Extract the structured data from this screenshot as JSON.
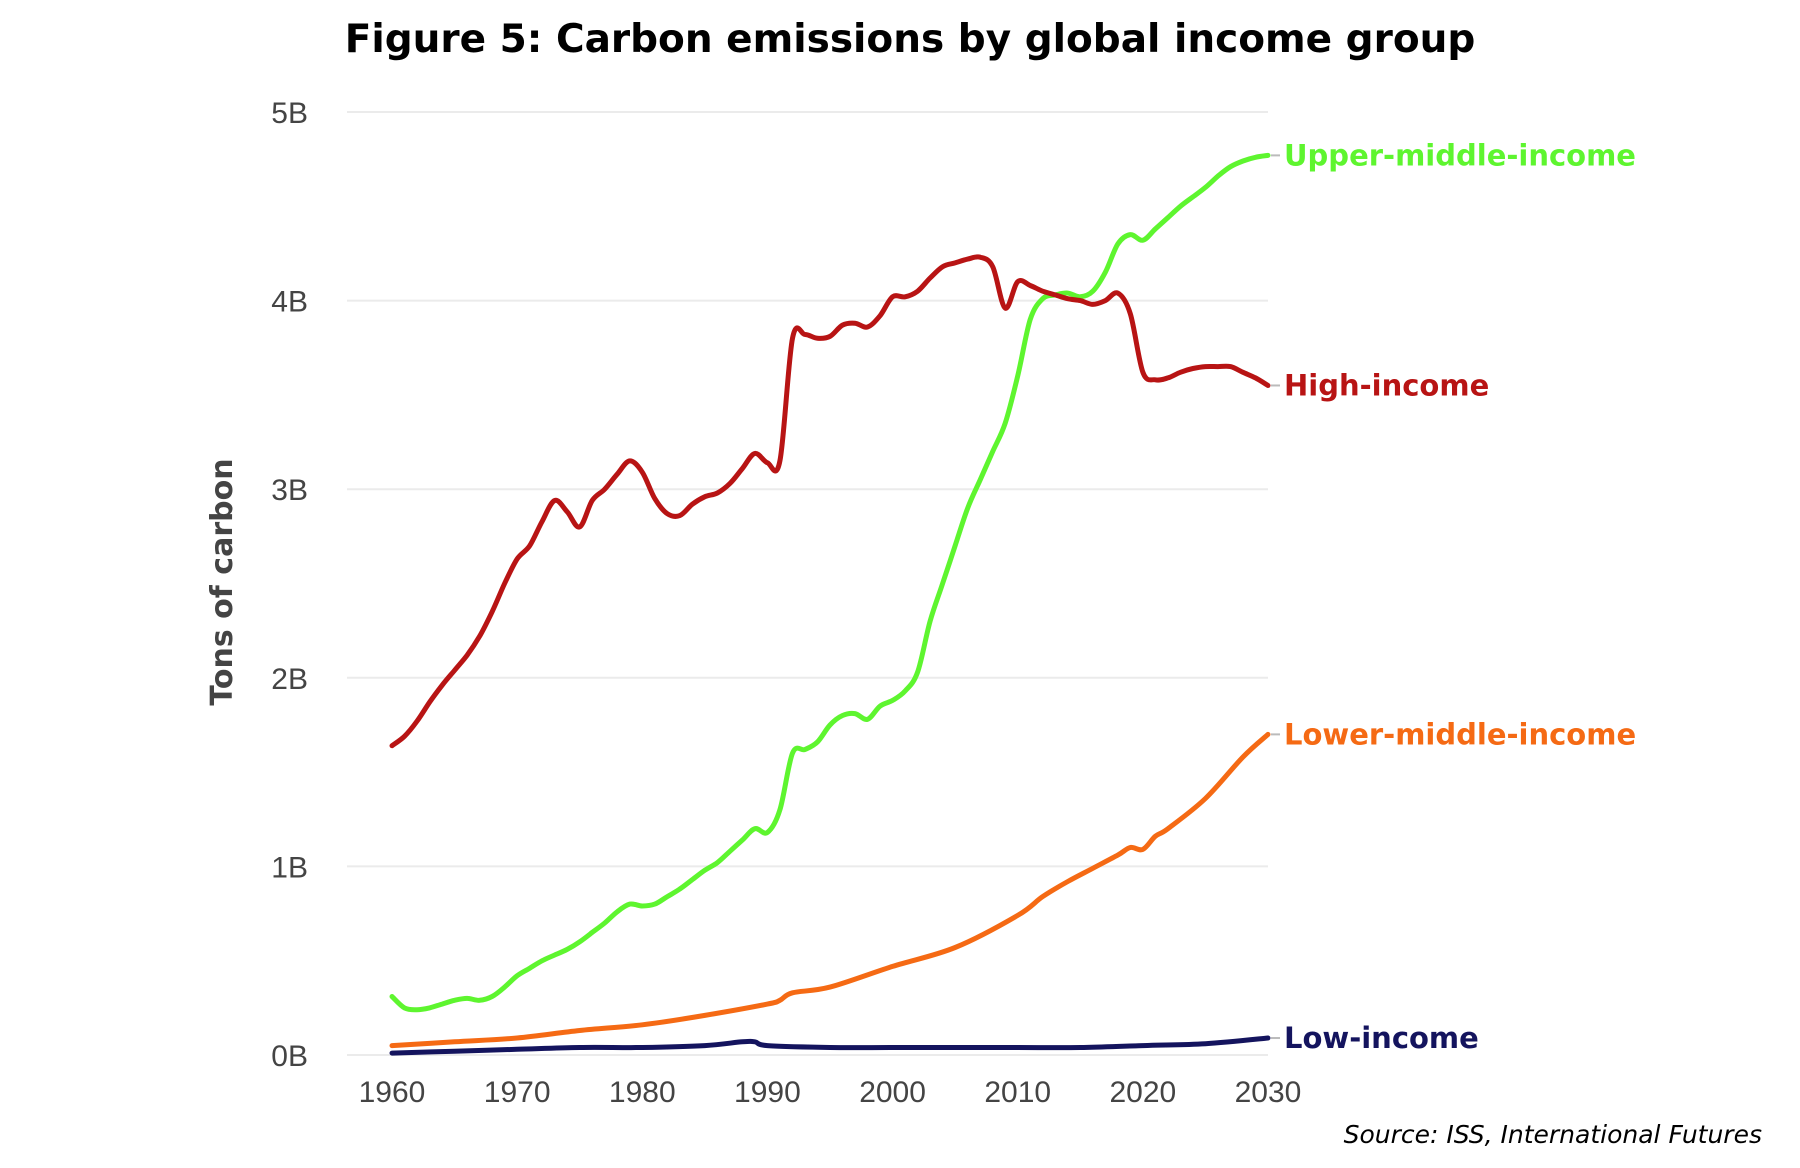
{
  "chart_data": {
    "type": "line",
    "title": "Figure 5: Carbon emissions by global income group",
    "xlabel": "",
    "ylabel": "Tons of carbon",
    "source": "Source: ISS, International Futures",
    "xlim": [
      1960,
      2030
    ],
    "ylim": [
      0,
      5
    ],
    "x_ticks": [
      1960,
      1970,
      1980,
      1990,
      2000,
      2010,
      2020,
      2030
    ],
    "x_tick_labels": [
      "1960",
      "1970",
      "1980",
      "1990",
      "2000",
      "2010",
      "2020",
      "2030"
    ],
    "y_ticks": [
      0,
      1,
      2,
      3,
      4,
      5
    ],
    "y_tick_labels": [
      "0B",
      "1B",
      "2B",
      "3B",
      "4B",
      "5B"
    ],
    "grid": "horizontal",
    "legend": "direct labels at line ends (right)",
    "series": [
      {
        "name": "Upper-middle-income",
        "color": "#5ef52f",
        "x": [
          1960,
          1961,
          1962,
          1963,
          1964,
          1965,
          1966,
          1967,
          1968,
          1969,
          1970,
          1971,
          1972,
          1973,
          1974,
          1975,
          1976,
          1977,
          1978,
          1979,
          1980,
          1981,
          1982,
          1983,
          1984,
          1985,
          1986,
          1987,
          1988,
          1989,
          1990,
          1991,
          1992,
          1993,
          1994,
          1995,
          1996,
          1997,
          1998,
          1999,
          2000,
          2001,
          2002,
          2003,
          2004,
          2005,
          2006,
          2007,
          2008,
          2009,
          2010,
          2011,
          2012,
          2013,
          2014,
          2015,
          2016,
          2017,
          2018,
          2019,
          2020,
          2021,
          2022,
          2023,
          2024,
          2025,
          2026,
          2027,
          2028,
          2029,
          2030
        ],
        "values": [
          0.31,
          0.25,
          0.24,
          0.25,
          0.27,
          0.29,
          0.3,
          0.29,
          0.31,
          0.36,
          0.42,
          0.46,
          0.5,
          0.53,
          0.56,
          0.6,
          0.65,
          0.7,
          0.76,
          0.8,
          0.79,
          0.8,
          0.84,
          0.88,
          0.93,
          0.98,
          1.02,
          1.08,
          1.14,
          1.2,
          1.18,
          1.3,
          1.6,
          1.62,
          1.66,
          1.75,
          1.8,
          1.81,
          1.78,
          1.85,
          1.88,
          1.93,
          2.03,
          2.3,
          2.5,
          2.7,
          2.9,
          3.05,
          3.2,
          3.35,
          3.6,
          3.9,
          4.01,
          4.03,
          4.04,
          4.02,
          4.05,
          4.15,
          4.3,
          4.35,
          4.32,
          4.38,
          4.44,
          4.5,
          4.55,
          4.6,
          4.66,
          4.71,
          4.74,
          4.76,
          4.77
        ]
      },
      {
        "name": "High-income",
        "color": "#b81414",
        "x": [
          1960,
          1961,
          1962,
          1963,
          1964,
          1965,
          1966,
          1967,
          1968,
          1969,
          1970,
          1971,
          1972,
          1973,
          1974,
          1975,
          1976,
          1977,
          1978,
          1979,
          1980,
          1981,
          1982,
          1983,
          1984,
          1985,
          1986,
          1987,
          1988,
          1989,
          1990,
          1991,
          1992,
          1993,
          1994,
          1995,
          1996,
          1997,
          1998,
          1999,
          2000,
          2001,
          2002,
          2003,
          2004,
          2005,
          2006,
          2007,
          2008,
          2009,
          2010,
          2011,
          2012,
          2013,
          2014,
          2015,
          2016,
          2017,
          2018,
          2019,
          2020,
          2021,
          2022,
          2023,
          2024,
          2025,
          2026,
          2027,
          2028,
          2029,
          2030
        ],
        "values": [
          1.64,
          1.69,
          1.77,
          1.87,
          1.96,
          2.04,
          2.12,
          2.22,
          2.35,
          2.5,
          2.63,
          2.7,
          2.83,
          2.94,
          2.88,
          2.8,
          2.94,
          3.0,
          3.08,
          3.15,
          3.09,
          2.95,
          2.87,
          2.86,
          2.92,
          2.96,
          2.98,
          3.03,
          3.11,
          3.19,
          3.14,
          3.15,
          3.8,
          3.82,
          3.8,
          3.81,
          3.87,
          3.88,
          3.86,
          3.92,
          4.02,
          4.02,
          4.05,
          4.12,
          4.18,
          4.2,
          4.22,
          4.23,
          4.18,
          3.96,
          4.1,
          4.08,
          4.05,
          4.03,
          4.01,
          4.0,
          3.98,
          4.0,
          4.04,
          3.93,
          3.62,
          3.58,
          3.59,
          3.62,
          3.64,
          3.65,
          3.65,
          3.65,
          3.62,
          3.59,
          3.55
        ]
      },
      {
        "name": "Lower-middle-income",
        "color": "#f56a14",
        "x": [
          1960,
          1965,
          1970,
          1975,
          1980,
          1985,
          1990,
          1991,
          1992,
          1995,
          2000,
          2005,
          2010,
          2012,
          2014,
          2016,
          2018,
          2019,
          2020,
          2021,
          2022,
          2025,
          2028,
          2030
        ],
        "values": [
          0.05,
          0.07,
          0.09,
          0.13,
          0.16,
          0.21,
          0.27,
          0.29,
          0.33,
          0.36,
          0.47,
          0.57,
          0.74,
          0.84,
          0.92,
          0.99,
          1.06,
          1.1,
          1.09,
          1.16,
          1.2,
          1.36,
          1.58,
          1.7
        ]
      },
      {
        "name": "Low-income",
        "color": "#14145e",
        "x": [
          1960,
          1965,
          1970,
          1975,
          1980,
          1985,
          1988,
          1989,
          1990,
          1995,
          2000,
          2005,
          2010,
          2015,
          2020,
          2025,
          2030
        ],
        "values": [
          0.01,
          0.02,
          0.03,
          0.04,
          0.04,
          0.05,
          0.07,
          0.07,
          0.05,
          0.04,
          0.04,
          0.04,
          0.04,
          0.04,
          0.05,
          0.06,
          0.09
        ]
      }
    ]
  }
}
